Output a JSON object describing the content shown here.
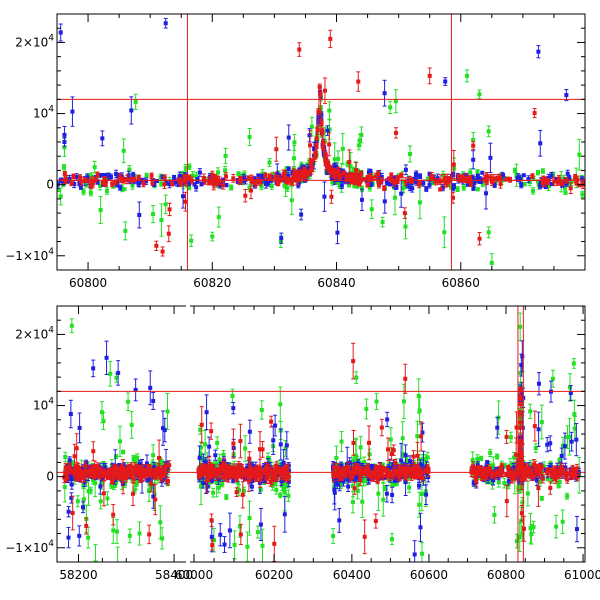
{
  "chart_data": [
    {
      "type": "scatter",
      "title": "",
      "xlabel": "",
      "ylabel": "",
      "xlim": [
        60795,
        60880
      ],
      "ylim": [
        -12000,
        24000
      ],
      "x_ticks": [
        60800,
        60820,
        60840,
        60860
      ],
      "x_tick_labels": [
        "60800",
        "60820",
        "60840",
        "60860"
      ],
      "y_ticks": [
        -10000,
        0,
        10000,
        20000
      ],
      "y_tick_labels": [
        {
          "base": "−1×10",
          "exp": "4"
        },
        {
          "base": "0",
          "exp": ""
        },
        {
          "base": "10",
          "exp": "4"
        },
        {
          "base": "2×10",
          "exp": "4"
        }
      ],
      "reference_lines": {
        "horizontal": [
          12000,
          600
        ],
        "vertical": [
          60816,
          60858.5
        ]
      },
      "model_curve": {
        "type": "microlensing",
        "t0": 60837.3,
        "u0": 0.03,
        "tE": 8,
        "baseline": 600,
        "scale": 13000
      },
      "series": [
        {
          "name": "blue",
          "color": "#1f1fe0",
          "n": 320,
          "noise": 500,
          "outlier_rate": 0.09,
          "points": [
            [
              60795.6,
              21400
            ],
            [
              60812.5,
              22700
            ],
            [
              60796.2,
              7000
            ],
            [
              60796.2,
              6000
            ],
            [
              60834.3,
              -4200
            ],
            [
              60877.0,
              12600
            ],
            [
              60872.5,
              18700
            ],
            [
              60857.5,
              14500
            ],
            [
              60862.0,
              3500
            ]
          ]
        },
        {
          "name": "green",
          "color": "#22e022",
          "n": 260,
          "noise": 800,
          "outlier_rate": 0.18,
          "points": [
            [
              60861.0,
              15300
            ],
            [
              60863.0,
              12700
            ],
            [
              60864.5,
              7500
            ],
            [
              60862.0,
              6300
            ],
            [
              60864.5,
              -6700
            ],
            [
              60865.0,
              -11000
            ],
            [
              60806.0,
              -6500
            ],
            [
              60820.0,
              -7300
            ],
            [
              60826.0,
              6700
            ],
            [
              60844.0,
              7000
            ]
          ]
        },
        {
          "name": "red",
          "color": "#e41a1a",
          "n": 300,
          "noise": 400,
          "outlier_rate": 0.07,
          "points": [
            [
              60834.0,
              19000
            ],
            [
              60839.0,
              20500
            ],
            [
              60843.5,
              14500
            ],
            [
              60855.0,
              15300
            ],
            [
              60811.0,
              -8600
            ],
            [
              60812.0,
              -9400
            ],
            [
              60813.0,
              -6900
            ],
            [
              60862.0,
              5500
            ],
            [
              60851.0,
              -4000
            ]
          ]
        }
      ]
    },
    {
      "type": "scatter",
      "title": "",
      "xlabel": "",
      "ylabel": "",
      "ylim": [
        -12000,
        24000
      ],
      "broken_x_axis": true,
      "segments": [
        {
          "xlim": [
            58155,
            58425
          ],
          "x_ticks": [
            58200,
            58400
          ],
          "x_tick_labels": [
            "58200",
            "58400"
          ]
        },
        {
          "xlim": [
            59990,
            60255
          ],
          "x_ticks": [
            60000,
            60200
          ],
          "x_tick_labels": [
            "60000",
            "60200"
          ]
        },
        {
          "xlim": [
            60255,
            61005
          ],
          "x_ticks": [
            60400,
            60600,
            60800,
            61000
          ],
          "x_tick_labels": [
            "60400",
            "60600",
            "60800",
            "61000"
          ]
        }
      ],
      "y_ticks": [
        -10000,
        0,
        10000,
        20000
      ],
      "y_tick_labels": [
        {
          "base": "−1×10",
          "exp": "4"
        },
        {
          "base": "0",
          "exp": ""
        },
        {
          "base": "10",
          "exp": "4"
        },
        {
          "base": "2×10",
          "exp": "4"
        }
      ],
      "reference_lines": {
        "horizontal": [
          12000,
          600
        ],
        "vertical": [
          60831,
          60845
        ]
      },
      "seasons": [
        [
          58170,
          58390
        ],
        [
          60010,
          60238
        ],
        [
          60350,
          60600
        ],
        [
          60710,
          60990
        ]
      ],
      "series": [
        {
          "name": "blue",
          "color": "#1f1fe0",
          "n": 650,
          "noise": 600,
          "outlier_rate": 0.12
        },
        {
          "name": "green",
          "color": "#22e022",
          "n": 520,
          "noise": 1200,
          "outlier_rate": 0.22
        },
        {
          "name": "red",
          "color": "#e41a1a",
          "n": 650,
          "noise": 450,
          "outlier_rate": 0.09
        }
      ]
    }
  ]
}
